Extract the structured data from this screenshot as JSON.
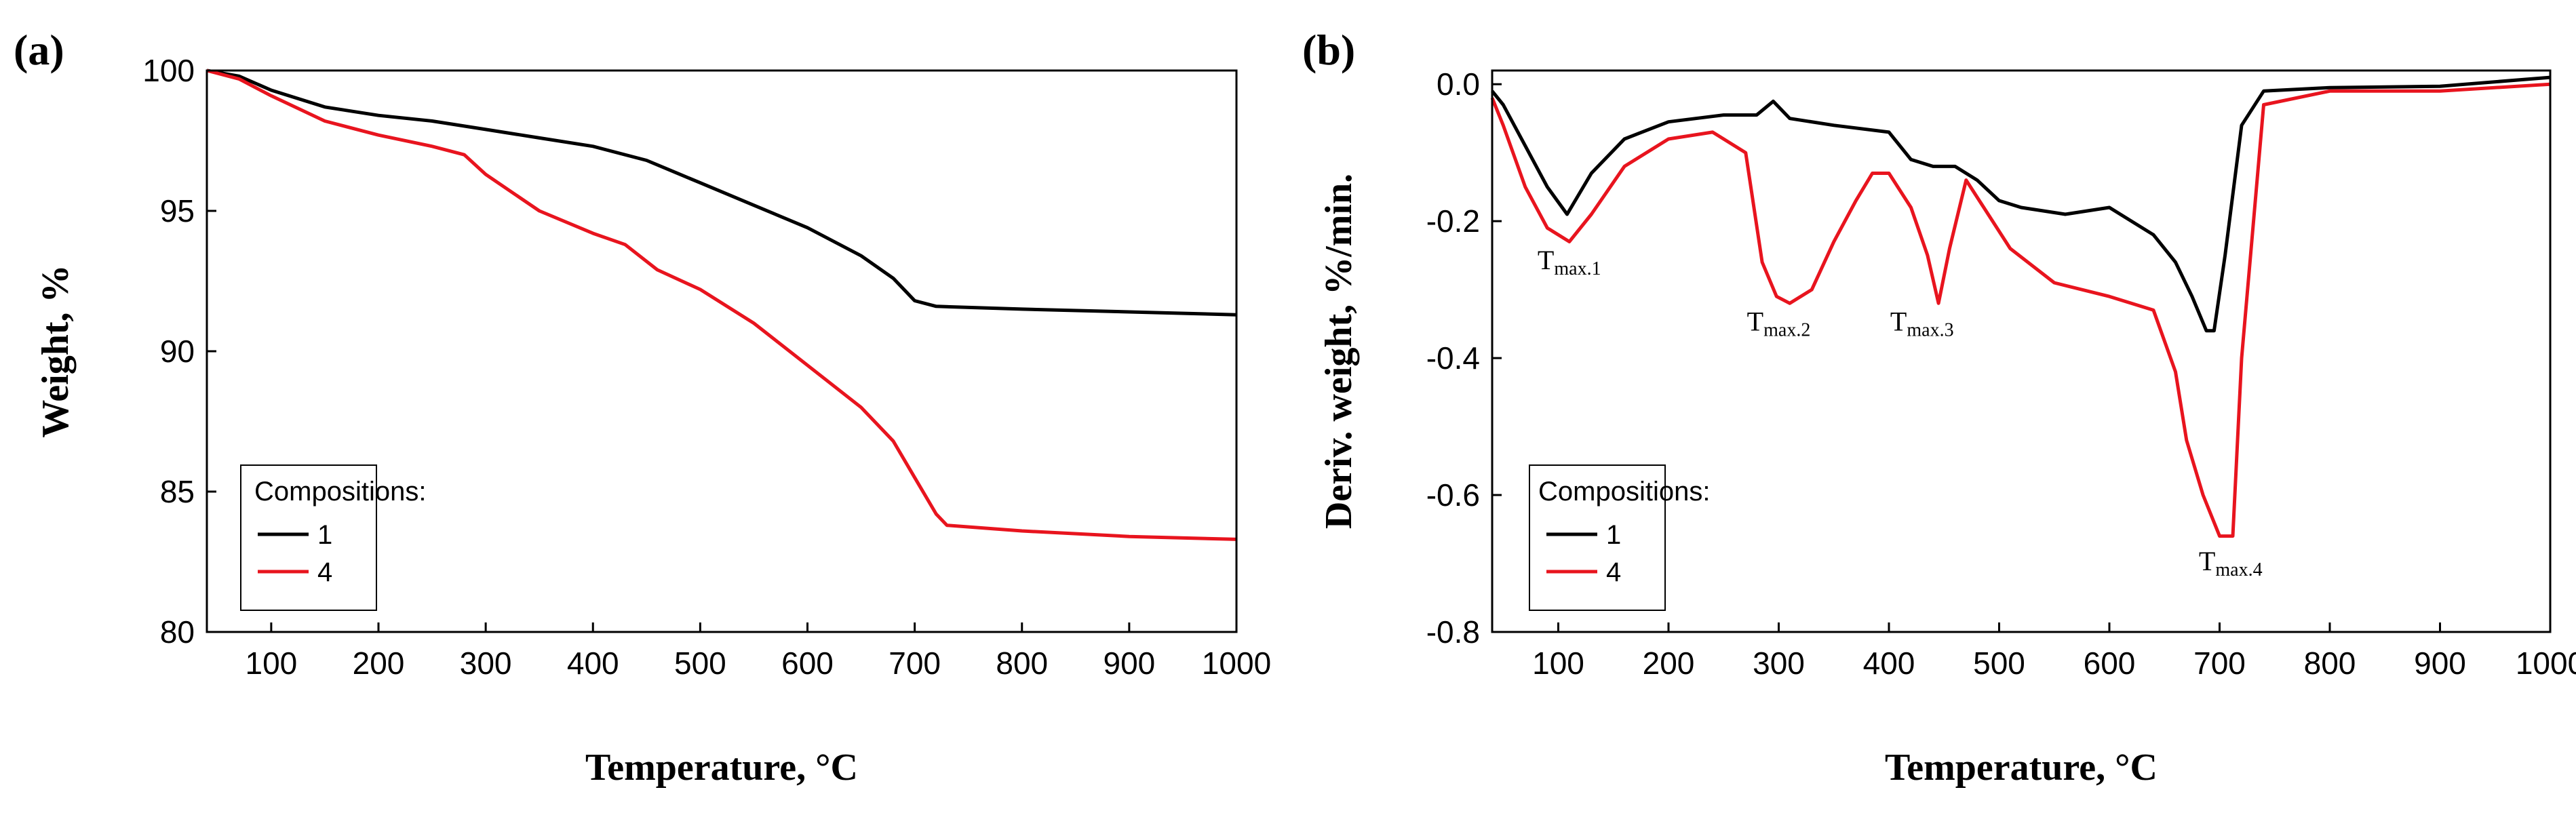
{
  "chart_data": [
    {
      "panel_label": "(a)",
      "type": "line",
      "xlabel": "Temperature, °C",
      "ylabel": "Weight, %",
      "xlim": [
        40,
        1000
      ],
      "ylim": [
        80,
        100
      ],
      "x_ticks": [
        100,
        200,
        300,
        400,
        500,
        600,
        700,
        800,
        900,
        1000
      ],
      "y_ticks": [
        80,
        85,
        90,
        95,
        100
      ],
      "legend": {
        "title": "Compositions:",
        "position": "bottom-left"
      },
      "series": [
        {
          "name": "1",
          "color": "#000000",
          "x": [
            40,
            70,
            100,
            150,
            200,
            250,
            300,
            350,
            400,
            450,
            500,
            550,
            600,
            650,
            680,
            700,
            720,
            800,
            900,
            1000
          ],
          "y": [
            100,
            99.8,
            99.3,
            98.7,
            98.4,
            98.2,
            97.9,
            97.6,
            97.3,
            96.8,
            96.0,
            95.2,
            94.4,
            93.4,
            92.6,
            91.8,
            91.6,
            91.5,
            91.4,
            91.3
          ]
        },
        {
          "name": "4",
          "color": "#e8141e",
          "x": [
            40,
            70,
            100,
            150,
            200,
            250,
            280,
            300,
            350,
            400,
            430,
            460,
            500,
            550,
            600,
            650,
            680,
            700,
            720,
            730,
            800,
            900,
            1000
          ],
          "y": [
            100,
            99.7,
            99.1,
            98.2,
            97.7,
            97.3,
            97.0,
            96.3,
            95.0,
            94.2,
            93.8,
            92.9,
            92.2,
            91.0,
            89.5,
            88.0,
            86.8,
            85.5,
            84.2,
            83.8,
            83.6,
            83.4,
            83.3
          ]
        }
      ]
    },
    {
      "panel_label": "(b)",
      "type": "line",
      "xlabel": "Temperature, °C",
      "ylabel": "Deriv. weight, %/min.",
      "xlim": [
        40,
        1000
      ],
      "ylim": [
        -0.8,
        0.02
      ],
      "x_ticks": [
        100,
        200,
        300,
        400,
        500,
        600,
        700,
        800,
        900,
        1000
      ],
      "y_ticks": [
        -0.8,
        -0.6,
        -0.4,
        -0.2,
        0.0
      ],
      "y_tick_labels": [
        "-0.8",
        "-0.6",
        "-0.4",
        "-0.2",
        "0.0"
      ],
      "legend": {
        "title": "Compositions:",
        "position": "bottom-left"
      },
      "annotations": [
        {
          "base": "T",
          "sub": "max.1",
          "x": 110,
          "y": -0.27
        },
        {
          "base": "T",
          "sub": "max.2",
          "x": 300,
          "y": -0.36
        },
        {
          "base": "T",
          "sub": "max.3",
          "x": 430,
          "y": -0.36
        },
        {
          "base": "T",
          "sub": "max.4",
          "x": 710,
          "y": -0.71
        }
      ],
      "series": [
        {
          "name": "1",
          "color": "#000000",
          "x": [
            40,
            50,
            70,
            90,
            108,
            130,
            160,
            200,
            250,
            280,
            295,
            310,
            350,
            400,
            420,
            440,
            460,
            480,
            500,
            520,
            560,
            600,
            640,
            660,
            675,
            688,
            695,
            705,
            720,
            740,
            800,
            900,
            1000
          ],
          "y": [
            -0.01,
            -0.03,
            -0.09,
            -0.15,
            -0.19,
            -0.13,
            -0.08,
            -0.055,
            -0.045,
            -0.045,
            -0.025,
            -0.05,
            -0.06,
            -0.07,
            -0.11,
            -0.12,
            -0.12,
            -0.14,
            -0.17,
            -0.18,
            -0.19,
            -0.18,
            -0.22,
            -0.26,
            -0.31,
            -0.36,
            -0.36,
            -0.25,
            -0.06,
            -0.01,
            -0.005,
            -0.003,
            0.01
          ]
        },
        {
          "name": "4",
          "color": "#e8141e",
          "x": [
            40,
            50,
            70,
            90,
            110,
            130,
            160,
            200,
            240,
            270,
            285,
            298,
            310,
            330,
            350,
            370,
            385,
            400,
            420,
            435,
            445,
            455,
            470,
            490,
            510,
            550,
            600,
            640,
            660,
            670,
            685,
            700,
            712,
            720,
            740,
            800,
            900,
            1000
          ],
          "y": [
            -0.02,
            -0.06,
            -0.15,
            -0.21,
            -0.23,
            -0.19,
            -0.12,
            -0.08,
            -0.07,
            -0.1,
            -0.26,
            -0.31,
            -0.32,
            -0.3,
            -0.23,
            -0.17,
            -0.13,
            -0.13,
            -0.18,
            -0.25,
            -0.32,
            -0.24,
            -0.14,
            -0.19,
            -0.24,
            -0.29,
            -0.31,
            -0.33,
            -0.42,
            -0.52,
            -0.6,
            -0.66,
            -0.66,
            -0.4,
            -0.03,
            -0.01,
            -0.01,
            0.0
          ]
        }
      ]
    }
  ]
}
